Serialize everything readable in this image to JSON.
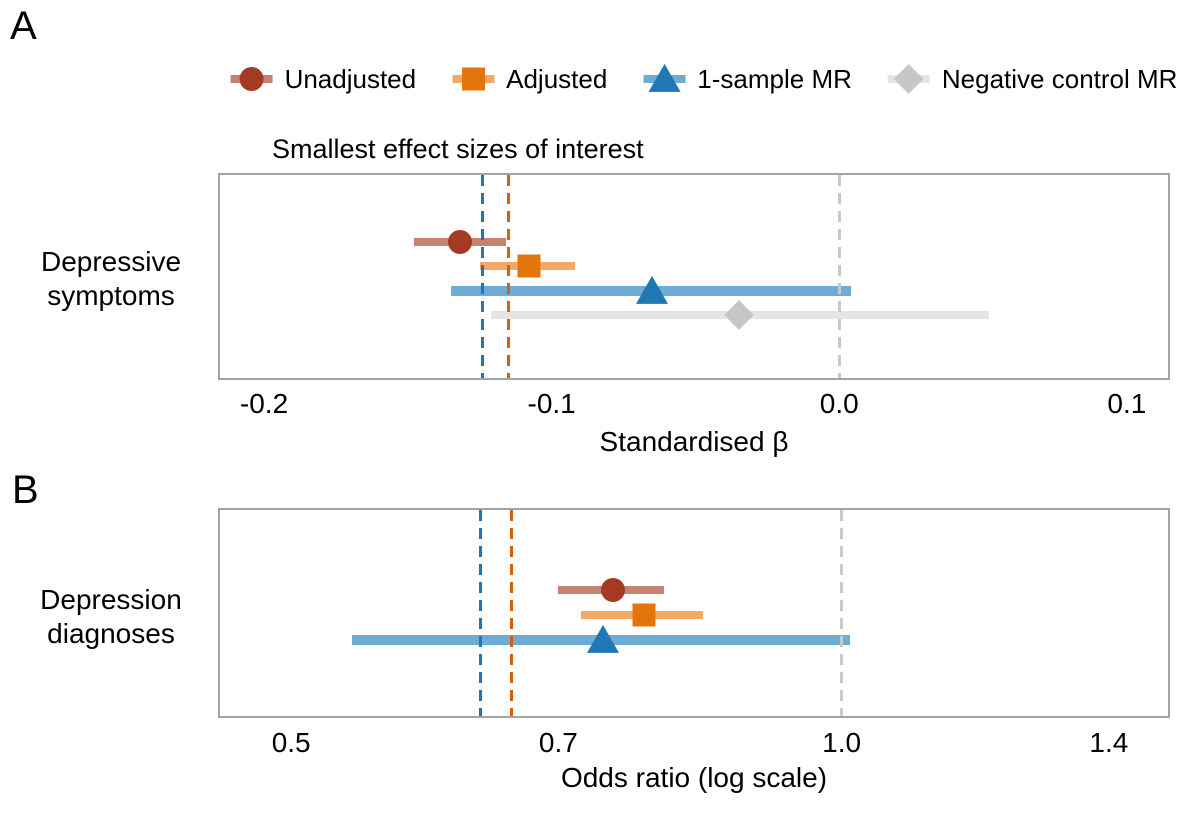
{
  "figure": {
    "panel_a_letter": "A",
    "panel_b_letter": "B",
    "sesoi_title": "Smallest effect sizes of interest"
  },
  "legend": {
    "items": [
      {
        "id": "unadjusted",
        "label": "Unadjusted",
        "marker": "circle",
        "color": "#A43A23",
        "ci_color": "#C5826F"
      },
      {
        "id": "adjusted",
        "label": "Adjusted",
        "marker": "square",
        "color": "#E4740C",
        "ci_color": "#F3A865"
      },
      {
        "id": "one-sample-mr",
        "label": "1-sample MR",
        "marker": "triangle",
        "color": "#1F77B4",
        "ci_color": "#6FACD5"
      },
      {
        "id": "negative-control-mr",
        "label": "Negative control MR",
        "marker": "diamond",
        "color": "#C6C6C6",
        "ci_color": "#E4E4E4"
      }
    ]
  },
  "chart_data": [
    {
      "panel": "A",
      "type": "forest",
      "scale": "linear",
      "outcome_label_lines": [
        "Depressive",
        "symptoms"
      ],
      "xlabel": "Standardised β",
      "xlim": [
        -0.216,
        0.115
      ],
      "xticks": [
        -0.2,
        -0.1,
        0.0,
        0.1
      ],
      "xtick_labels": [
        "-0.2",
        "-0.1",
        "0.0",
        "0.1"
      ],
      "reference_line": {
        "value": 0.0,
        "color": "#C9C9C9"
      },
      "sesoi_lines": [
        {
          "name": "1-sample MR smallest effect size of interest",
          "value": -0.124,
          "color": "#1F77B4"
        },
        {
          "name": "Adjusted smallest effect size of interest",
          "value": -0.115,
          "color": "#D95F02"
        }
      ],
      "series": [
        {
          "name": "Unadjusted",
          "estimate": -0.132,
          "ci_low": -0.148,
          "ci_high": -0.116
        },
        {
          "name": "Adjusted",
          "estimate": -0.108,
          "ci_low": -0.125,
          "ci_high": -0.092
        },
        {
          "name": "1-sample MR",
          "estimate": -0.065,
          "ci_low": -0.135,
          "ci_high": 0.004
        },
        {
          "name": "Negative control MR",
          "estimate": -0.035,
          "ci_low": -0.121,
          "ci_high": 0.052
        }
      ]
    },
    {
      "panel": "B",
      "type": "forest",
      "scale": "log",
      "outcome_label_lines": [
        "Depression",
        "diagnoses"
      ],
      "xlabel": "Odds ratio (log scale)",
      "xlim": [
        0.456,
        1.512
      ],
      "xticks": [
        0.5,
        0.7,
        1.0,
        1.4
      ],
      "xtick_labels": [
        "0.5",
        "0.7",
        "1.0",
        "1.4"
      ],
      "reference_line": {
        "value": 1.0,
        "color": "#C9C9C9"
      },
      "sesoi_lines": [
        {
          "name": "1-sample MR smallest effect size of interest",
          "value": 0.635,
          "color": "#1F77B4"
        },
        {
          "name": "Adjusted smallest effect size of interest",
          "value": 0.66,
          "color": "#D95F02"
        }
      ],
      "series": [
        {
          "name": "Unadjusted",
          "estimate": 0.75,
          "ci_low": 0.7,
          "ci_high": 0.8
        },
        {
          "name": "Adjusted",
          "estimate": 0.78,
          "ci_low": 0.72,
          "ci_high": 0.84
        },
        {
          "name": "1-sample MR",
          "estimate": 0.74,
          "ci_low": 0.54,
          "ci_high": 1.01
        }
      ]
    }
  ]
}
